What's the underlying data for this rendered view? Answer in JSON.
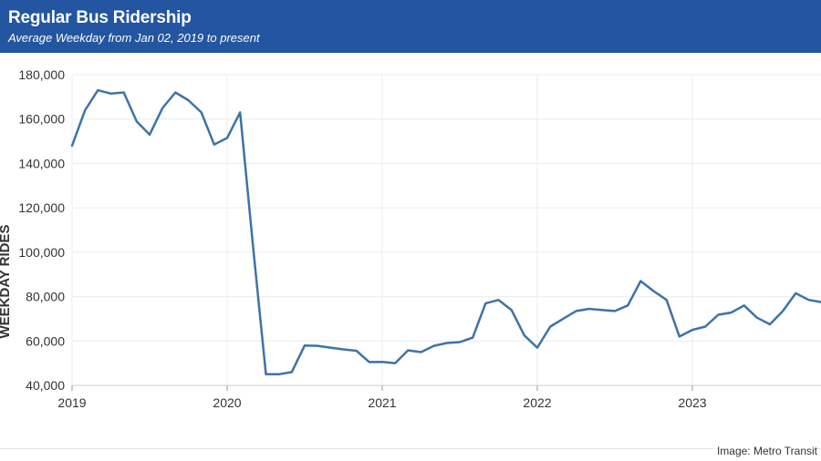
{
  "header": {
    "title": "Regular Bus Ridership",
    "subtitle": "Average Weekday from Jan 02, 2019 to present"
  },
  "credit": "Image: Metro Transit",
  "colors": {
    "header_bg": "#2355a0",
    "line": "#3e73a8",
    "grid": "#ececec"
  },
  "chart_data": {
    "type": "line",
    "title": "Regular Bus Ridership",
    "subtitle": "Average Weekday from Jan 02, 2019 to present",
    "xlabel": "",
    "ylabel": "WEEKDAY RIDES",
    "ylim": [
      40000,
      180000
    ],
    "y_ticks": [
      40000,
      60000,
      80000,
      100000,
      120000,
      140000,
      160000,
      180000
    ],
    "y_tick_labels": [
      "40,000",
      "60,000",
      "80,000",
      "100,000",
      "120,000",
      "140,000",
      "160,000",
      "180,000"
    ],
    "x_ticks": [
      2019,
      2020,
      2021,
      2022,
      2023
    ],
    "x_tick_labels": [
      "2019",
      "2020",
      "2021",
      "2022",
      "2023"
    ],
    "xlim": [
      "2019-01",
      "2023-11"
    ],
    "grid": true,
    "legend": "none",
    "series": [
      {
        "x": [
          "2019-01",
          "2019-02",
          "2019-03",
          "2019-04",
          "2019-05",
          "2019-06",
          "2019-07",
          "2019-08",
          "2019-09",
          "2019-10",
          "2019-11",
          "2019-12",
          "2020-01",
          "2020-02",
          "2020-03",
          "2020-04",
          "2020-05",
          "2020-06",
          "2020-07",
          "2020-08",
          "2020-09",
          "2020-10",
          "2020-11",
          "2020-12",
          "2021-01",
          "2021-02",
          "2021-03",
          "2021-04",
          "2021-05",
          "2021-06",
          "2021-07",
          "2021-08",
          "2021-09",
          "2021-10",
          "2021-11",
          "2021-12",
          "2022-01",
          "2022-02",
          "2022-03",
          "2022-04",
          "2022-05",
          "2022-06",
          "2022-07",
          "2022-08",
          "2022-09",
          "2022-10",
          "2022-11",
          "2022-12",
          "2023-01",
          "2023-02",
          "2023-03",
          "2023-04",
          "2023-05",
          "2023-06",
          "2023-07",
          "2023-08",
          "2023-09",
          "2023-10",
          "2023-11"
        ],
        "values": [
          148000,
          164000,
          173000,
          171500,
          172000,
          159000,
          153000,
          165000,
          172000,
          168500,
          163000,
          148500,
          151500,
          163000,
          103000,
          45000,
          45000,
          46000,
          58000,
          57800,
          57000,
          56200,
          55600,
          50500,
          50600,
          50000,
          55800,
          55000,
          57800,
          59100,
          59500,
          61500,
          77000,
          78500,
          74000,
          62500,
          57000,
          66500,
          70000,
          73500,
          74500,
          74000,
          73500,
          76000,
          87000,
          82500,
          78500,
          62000,
          65000,
          66500,
          71800,
          72800,
          76000,
          70500,
          67500,
          73500,
          81500,
          78500,
          77500
        ]
      }
    ]
  }
}
